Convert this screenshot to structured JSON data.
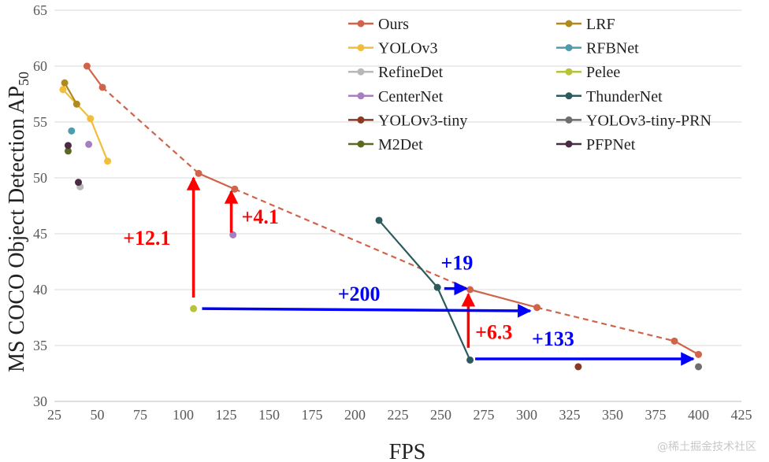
{
  "chart_data": {
    "type": "scatter",
    "title": "",
    "xlabel": "FPS",
    "ylabel": "MS COCO Object Detection AP",
    "ylabel_sub": "50",
    "xlim": [
      25,
      425
    ],
    "ylim": [
      30,
      65
    ],
    "xticks": [
      25,
      50,
      75,
      100,
      125,
      150,
      175,
      200,
      225,
      250,
      275,
      300,
      325,
      350,
      375,
      400,
      425
    ],
    "yticks": [
      30,
      35,
      40,
      45,
      50,
      55,
      60,
      65
    ],
    "grid": "horizontal",
    "legend_position": "top-right",
    "series": [
      {
        "name": "Ours",
        "color": "#D0644A",
        "segments": [
          {
            "style": "solid",
            "points": [
              [
                44,
                60.0
              ],
              [
                53,
                58.1
              ]
            ]
          },
          {
            "style": "dashed",
            "points": [
              [
                53,
                58.1
              ],
              [
                109,
                50.4
              ]
            ]
          },
          {
            "style": "solid",
            "points": [
              [
                109,
                50.4
              ],
              [
                130,
                49.0
              ]
            ]
          },
          {
            "style": "dashed",
            "points": [
              [
                130,
                49.0
              ],
              [
                267,
                40.0
              ]
            ]
          },
          {
            "style": "solid",
            "points": [
              [
                267,
                40.0
              ],
              [
                306,
                38.4
              ]
            ]
          },
          {
            "style": "dashed",
            "points": [
              [
                306,
                38.4
              ],
              [
                386,
                35.4
              ]
            ]
          },
          {
            "style": "solid",
            "points": [
              [
                386,
                35.4
              ],
              [
                400,
                34.2
              ]
            ]
          }
        ],
        "points": [
          [
            44,
            60.0
          ],
          [
            53,
            58.1
          ],
          [
            109,
            50.4
          ],
          [
            130,
            49.0
          ],
          [
            267,
            40.0
          ],
          [
            306,
            38.4
          ],
          [
            386,
            35.4
          ],
          [
            400,
            34.2
          ]
        ]
      },
      {
        "name": "YOLOv3",
        "color": "#F2BE3A",
        "line": true,
        "points": [
          [
            30,
            57.9
          ],
          [
            46,
            55.3
          ],
          [
            56,
            51.5
          ]
        ]
      },
      {
        "name": "RefineDet",
        "color": "#B8B8B8",
        "line": false,
        "points": [
          [
            40,
            49.2
          ]
        ]
      },
      {
        "name": "CenterNet",
        "color": "#A77FC0",
        "line": false,
        "points": [
          [
            45,
            53.0
          ],
          [
            129,
            44.9
          ]
        ]
      },
      {
        "name": "YOLOv3-tiny",
        "color": "#8B3A22",
        "line": false,
        "points": [
          [
            330,
            33.1
          ]
        ]
      },
      {
        "name": "M2Det",
        "color": "#5C6A1E",
        "line": false,
        "points": [
          [
            33,
            52.4
          ]
        ]
      },
      {
        "name": "LRF",
        "color": "#B08A1C",
        "line": true,
        "points": [
          [
            31,
            58.5
          ],
          [
            38,
            56.6
          ]
        ]
      },
      {
        "name": "RFBNet",
        "color": "#4E9CAE",
        "line": false,
        "points": [
          [
            35,
            54.2
          ]
        ]
      },
      {
        "name": "Pelee",
        "color": "#B7C43A",
        "line": false,
        "points": [
          [
            106,
            38.3
          ]
        ]
      },
      {
        "name": "ThunderNet",
        "color": "#2C5B5E",
        "line": true,
        "points": [
          [
            214,
            46.2
          ],
          [
            248,
            40.2
          ],
          [
            267,
            33.7
          ]
        ]
      },
      {
        "name": "YOLOv3-tiny-PRN",
        "color": "#6E6E6E",
        "line": false,
        "points": [
          [
            400,
            33.1
          ]
        ]
      },
      {
        "name": "PFPNet",
        "color": "#4A2B44",
        "line": false,
        "points": [
          [
            39,
            49.6
          ],
          [
            33,
            52.9
          ]
        ]
      }
    ],
    "annotations": [
      {
        "text": "+12.1",
        "color": "#FF0000",
        "label_at": [
          65,
          44.0
        ],
        "arrow": {
          "from": [
            106,
            39.3
          ],
          "to": [
            106,
            50.0
          ]
        }
      },
      {
        "text": "+4.1",
        "color": "#FF0000",
        "label_at": [
          134,
          45.9
        ],
        "arrow": {
          "from": [
            128,
            45.1
          ],
          "to": [
            128,
            48.8
          ]
        }
      },
      {
        "text": "+6.3",
        "color": "#FF0000",
        "label_at": [
          270,
          35.6
        ],
        "arrow": {
          "from": [
            266,
            34.8
          ],
          "to": [
            266,
            39.6
          ]
        }
      },
      {
        "text": "+200",
        "color": "#0000FF",
        "label_at": [
          190,
          39.0
        ],
        "arrow": {
          "from": [
            111,
            38.3
          ],
          "to": [
            302,
            38.1
          ]
        }
      },
      {
        "text": "+19",
        "color": "#0000FF",
        "label_at": [
          250,
          41.8
        ],
        "arrow": {
          "from": [
            252,
            40.1
          ],
          "to": [
            265,
            40.1
          ]
        }
      },
      {
        "text": "+133",
        "color": "#0000FF",
        "label_at": [
          303,
          35.0
        ],
        "arrow": {
          "from": [
            270,
            33.8
          ],
          "to": [
            397,
            33.8
          ]
        }
      }
    ]
  },
  "watermark": "@稀土掘金技术社区"
}
